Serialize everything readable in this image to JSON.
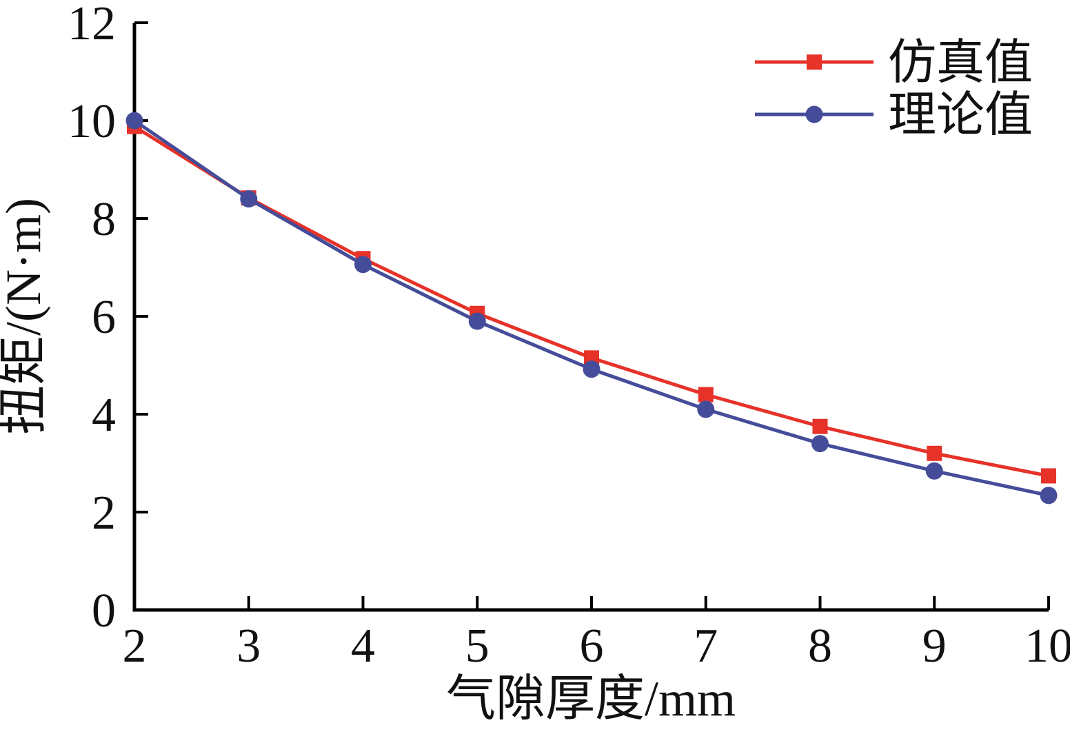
{
  "chart_data": {
    "type": "line",
    "title": "",
    "xlabel": "气隙厚度/mm",
    "ylabel": "扭矩/(N·m)",
    "xlim": [
      2,
      10
    ],
    "ylim": [
      0,
      12
    ],
    "xticks": [
      2,
      3,
      4,
      5,
      6,
      7,
      8,
      9,
      10
    ],
    "yticks": [
      0,
      2,
      4,
      6,
      8,
      10,
      12
    ],
    "grid": false,
    "legend_position": "top-right",
    "axis_color": "#000000",
    "x": [
      2,
      3,
      4,
      5,
      6,
      7,
      8,
      9,
      10
    ],
    "series": [
      {
        "name": "仿真值",
        "color": "#e63229",
        "marker": "square",
        "values": [
          9.88,
          8.42,
          7.18,
          6.06,
          5.15,
          4.4,
          3.75,
          3.2,
          2.74
        ]
      },
      {
        "name": "理论值",
        "color": "#454c99",
        "marker": "circle",
        "values": [
          10.0,
          8.4,
          7.06,
          5.9,
          4.92,
          4.1,
          3.4,
          2.84,
          2.34
        ]
      }
    ]
  }
}
